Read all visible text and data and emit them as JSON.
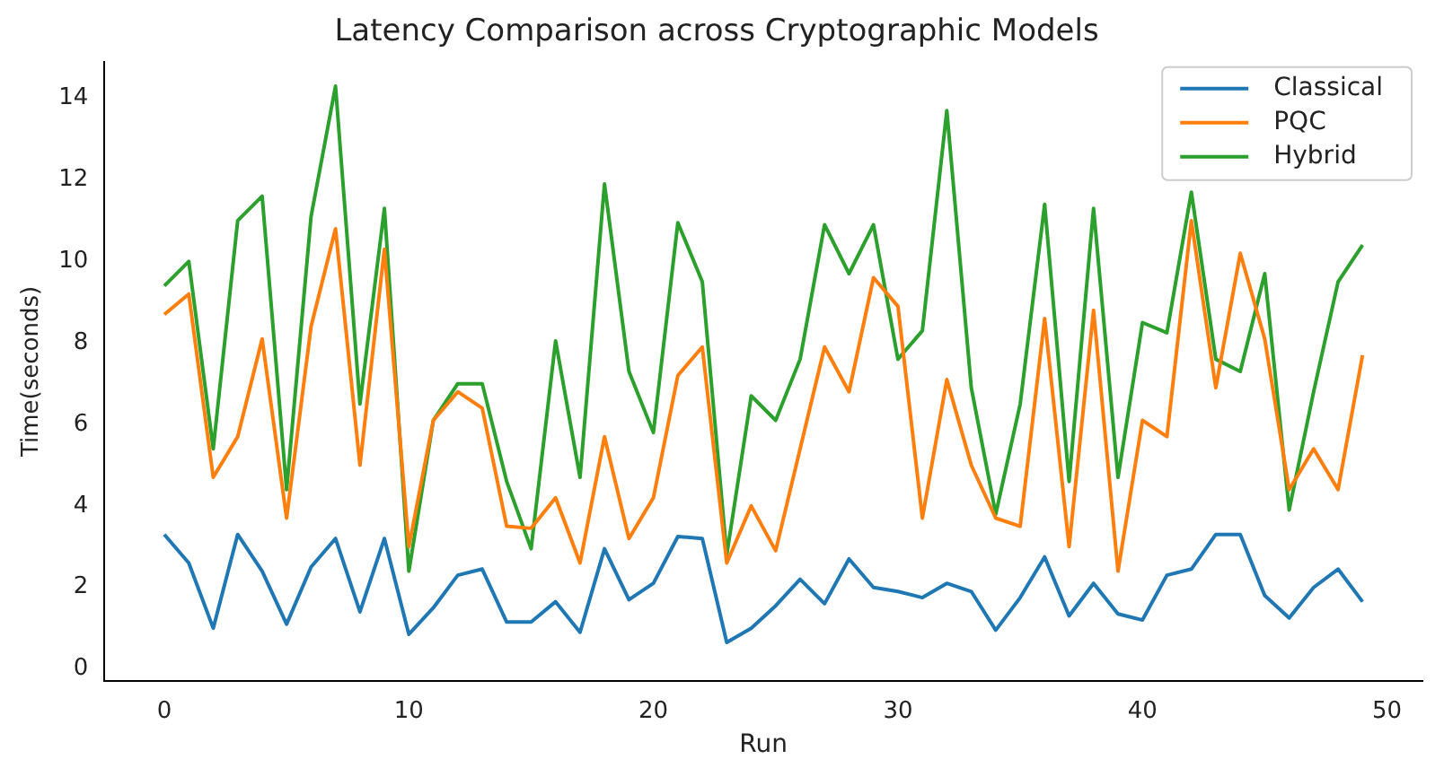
{
  "chart_data": {
    "type": "line",
    "title": "Latency Comparison across Cryptographic Models",
    "xlabel": "Run",
    "ylabel": "Time(seconds)",
    "x": [
      0,
      1,
      2,
      3,
      4,
      5,
      6,
      7,
      8,
      9,
      10,
      11,
      12,
      13,
      14,
      15,
      16,
      17,
      18,
      19,
      20,
      21,
      22,
      23,
      24,
      25,
      26,
      27,
      28,
      29,
      30,
      31,
      32,
      33,
      34,
      35,
      36,
      37,
      38,
      39,
      40,
      41,
      42,
      43,
      44,
      45,
      46,
      47,
      48,
      49
    ],
    "series": [
      {
        "name": "Classical",
        "color": "#1f77b4",
        "values": [
          3.3,
          2.6,
          1.0,
          3.3,
          2.4,
          1.1,
          2.5,
          3.2,
          1.4,
          3.2,
          0.85,
          1.5,
          2.3,
          2.45,
          1.15,
          1.15,
          1.65,
          0.9,
          2.95,
          1.7,
          2.1,
          3.25,
          3.2,
          0.65,
          1.0,
          1.55,
          2.2,
          1.6,
          2.7,
          2.0,
          1.9,
          1.75,
          2.1,
          1.9,
          0.95,
          1.75,
          2.75,
          1.3,
          2.1,
          1.35,
          1.2,
          2.3,
          2.45,
          3.3,
          3.3,
          1.8,
          1.25,
          2.0,
          2.45,
          1.65
        ]
      },
      {
        "name": "PQC",
        "color": "#ff7f0e",
        "values": [
          8.7,
          9.2,
          4.7,
          5.7,
          8.1,
          3.7,
          8.4,
          10.8,
          5.0,
          10.3,
          3.0,
          6.1,
          6.8,
          6.4,
          3.5,
          3.45,
          4.2,
          2.6,
          5.7,
          3.2,
          4.2,
          7.2,
          7.9,
          2.6,
          4.0,
          2.9,
          5.4,
          7.9,
          6.8,
          9.6,
          8.9,
          3.7,
          7.1,
          5.0,
          3.7,
          3.5,
          8.6,
          3.0,
          8.8,
          2.4,
          6.1,
          5.7,
          11.0,
          6.9,
          10.2,
          8.1,
          4.4,
          5.4,
          4.4,
          7.7
        ]
      },
      {
        "name": "Hybrid",
        "color": "#2ca02c",
        "values": [
          9.4,
          10.0,
          5.4,
          11.0,
          11.6,
          4.4,
          11.1,
          14.3,
          6.5,
          11.3,
          2.4,
          6.1,
          7.0,
          7.0,
          4.6,
          2.95,
          8.05,
          4.7,
          11.9,
          7.3,
          5.8,
          10.95,
          9.5,
          2.8,
          6.7,
          6.1,
          7.6,
          10.9,
          9.7,
          10.9,
          7.6,
          8.3,
          13.7,
          6.9,
          3.8,
          6.5,
          11.4,
          4.6,
          11.3,
          4.7,
          8.5,
          8.25,
          11.7,
          7.6,
          7.3,
          9.7,
          3.9,
          6.8,
          9.5,
          10.4
        ]
      }
    ],
    "xlim": [
      -2.45,
      51.45
    ],
    "xticks": [
      0,
      10,
      20,
      30,
      40,
      50
    ],
    "ylim": [
      -0.3,
      14.9
    ],
    "yticks": [
      0,
      2,
      4,
      6,
      8,
      10,
      12,
      14
    ],
    "grid": false,
    "legend": "top right",
    "marker": "none",
    "line_style": "solid"
  }
}
